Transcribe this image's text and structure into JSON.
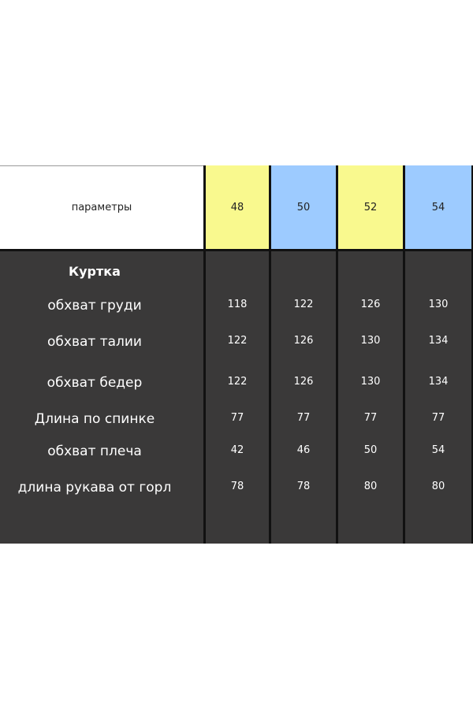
{
  "header": {
    "label": "параметры",
    "sizes": [
      "48",
      "50",
      "52",
      "54"
    ]
  },
  "section": "Куртка",
  "rows": [
    {
      "label": "обхват груди",
      "values": [
        "118",
        "122",
        "126",
        "130"
      ]
    },
    {
      "label": "обхват талии",
      "values": [
        "122",
        "126",
        "130",
        "134"
      ]
    },
    {
      "label": "обхват бедер",
      "values": [
        "122",
        "126",
        "130",
        "134"
      ]
    },
    {
      "label": "Длина по спинке",
      "values": [
        "77",
        "77",
        "77",
        "77"
      ]
    },
    {
      "label": "обхват плеча",
      "values": [
        "42",
        "46",
        "50",
        "54"
      ]
    },
    {
      "label": "длина рукава от горл",
      "values": [
        "78",
        "78",
        "80",
        "80"
      ]
    }
  ]
}
